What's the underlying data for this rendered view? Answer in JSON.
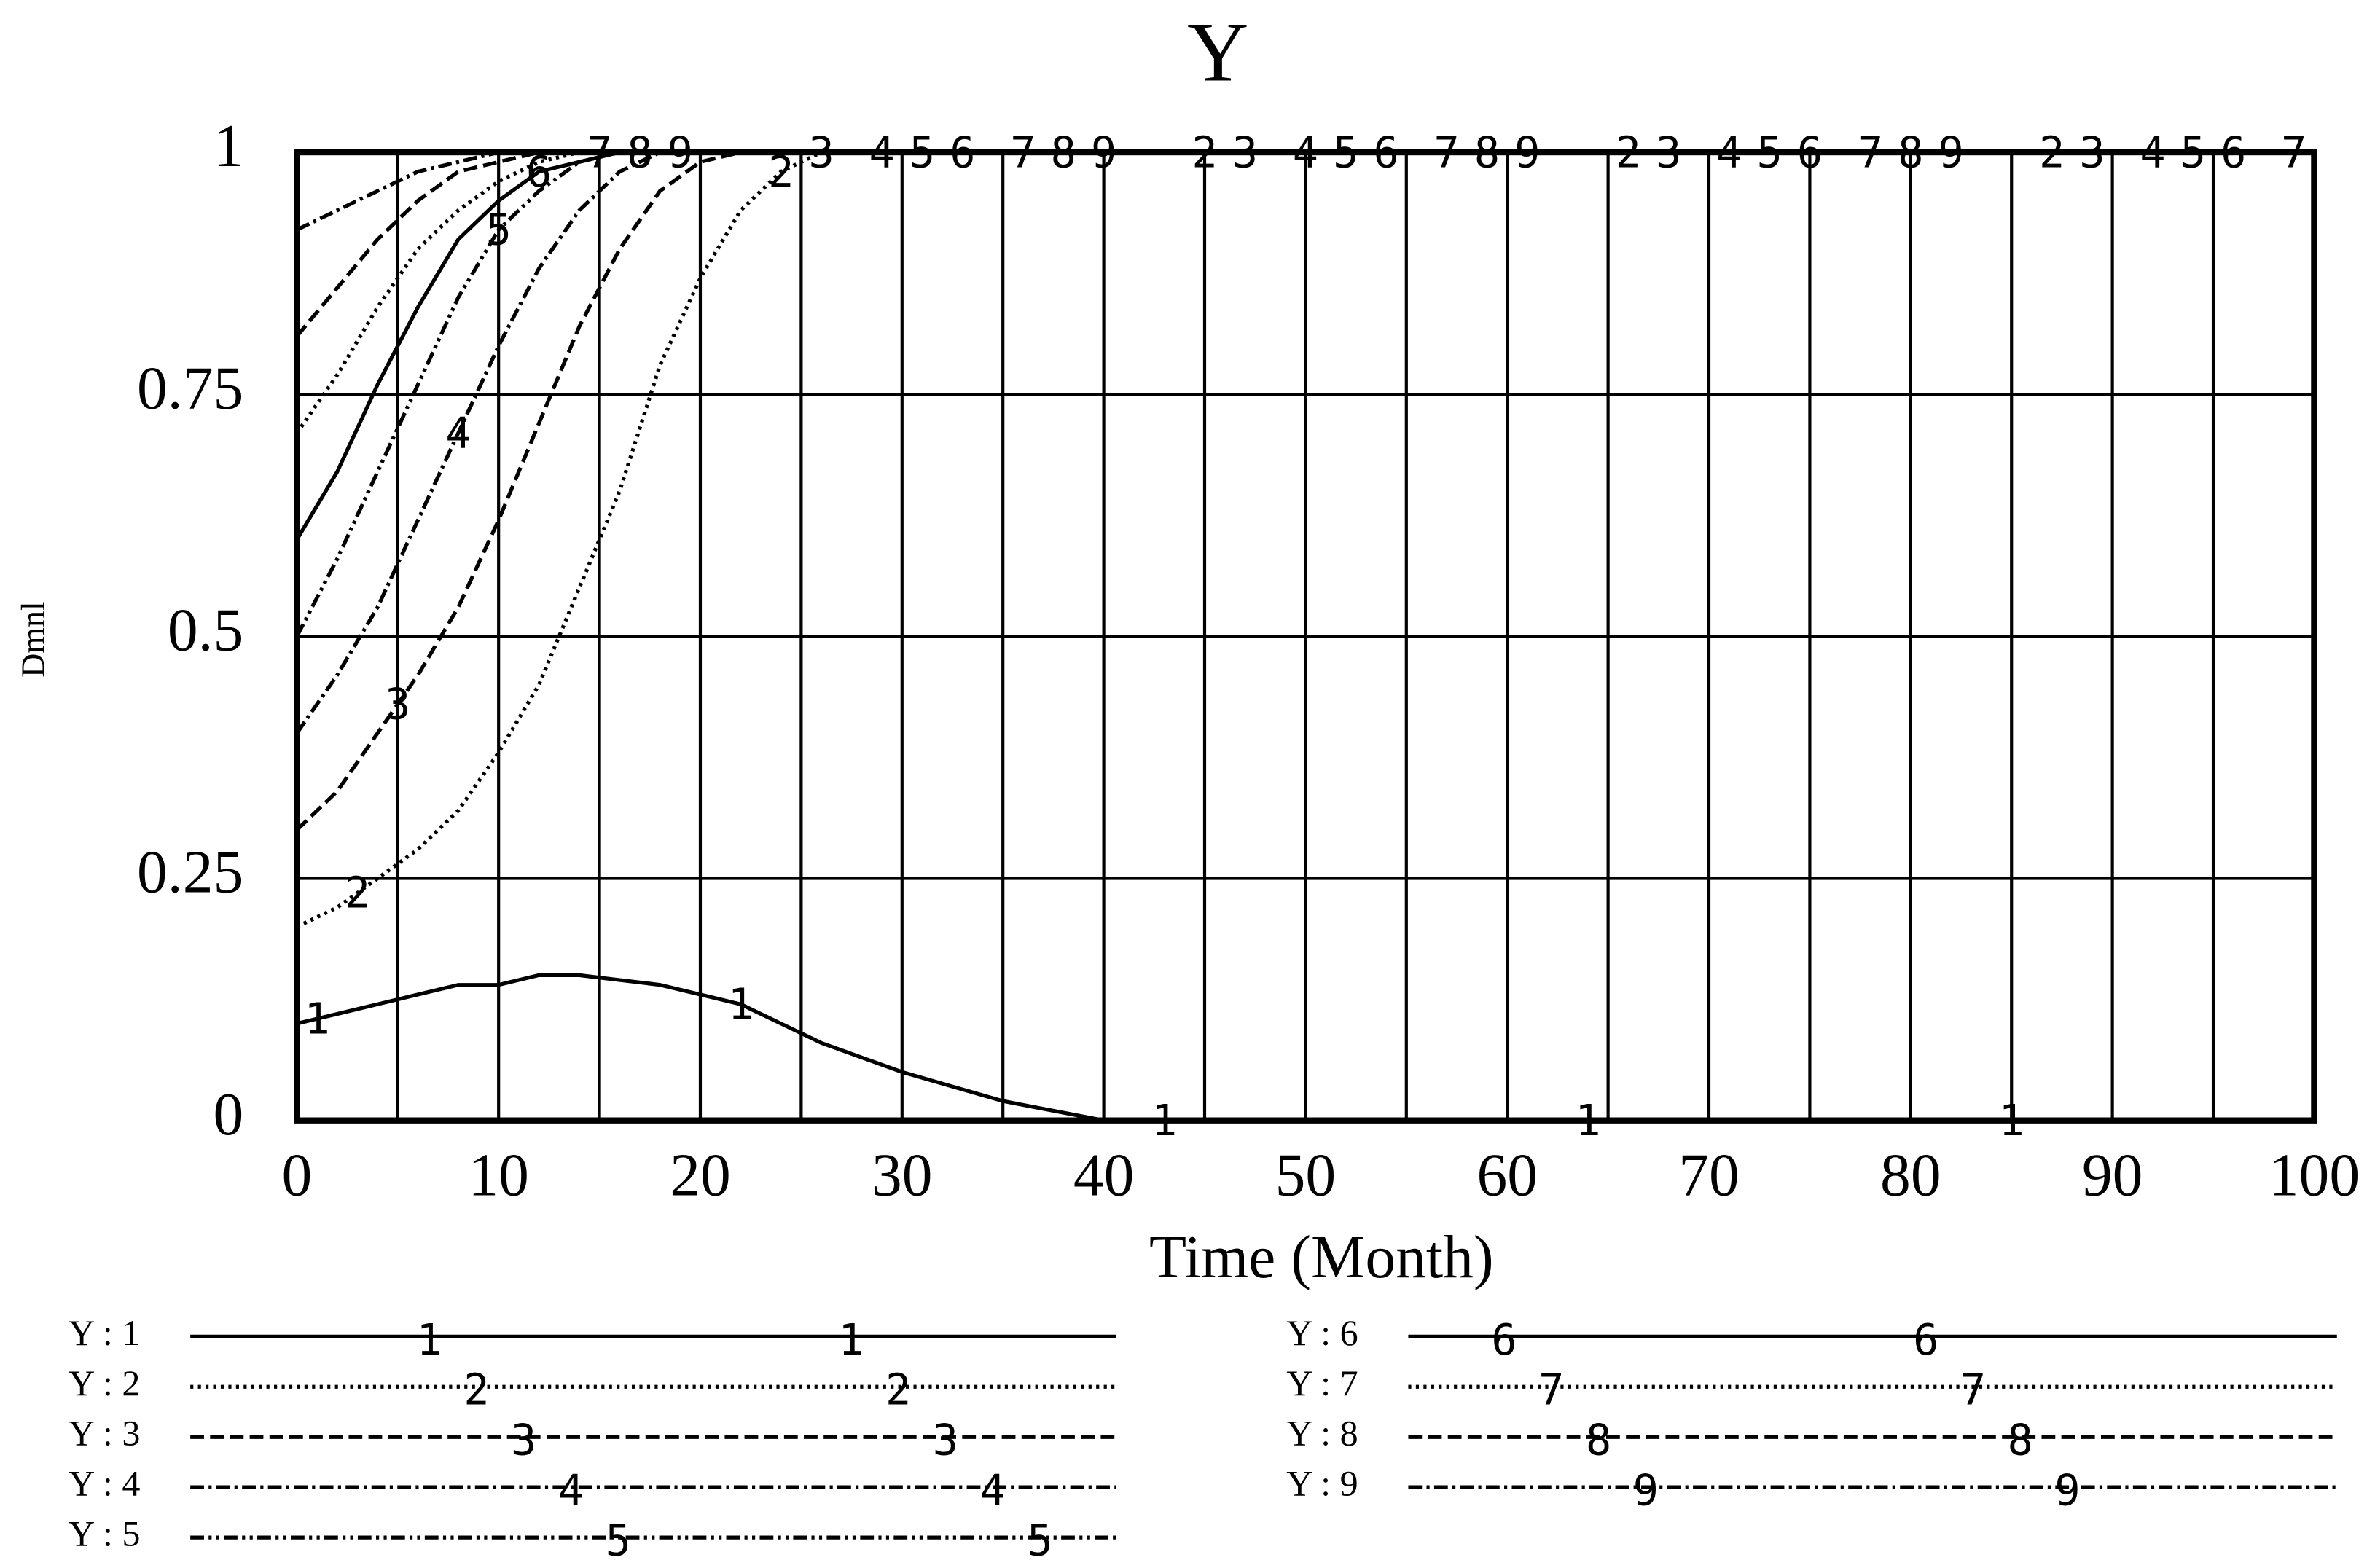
{
  "chart_data": {
    "type": "line",
    "title": "Y",
    "x_label": "Time (Month)",
    "y_label": "Dmnl",
    "x": [
      0,
      2,
      4,
      6,
      8,
      10,
      12,
      14,
      16,
      18,
      20,
      22,
      24,
      26,
      28,
      30,
      35,
      40,
      50,
      60,
      70,
      80,
      90,
      100
    ],
    "xlim": [
      0,
      100
    ],
    "xticks": [
      0,
      10,
      20,
      30,
      40,
      50,
      60,
      70,
      80,
      90,
      100
    ],
    "x_minor_ticks": [
      5,
      15,
      25,
      35,
      45,
      55,
      65,
      75,
      85,
      95
    ],
    "ylim": [
      0,
      1
    ],
    "yticks": [
      0,
      0.25,
      0.5,
      0.75,
      1
    ],
    "grid": true,
    "series": [
      {
        "name": "Y : 1",
        "marker": "1",
        "color": "#000000",
        "line_style": "solid",
        "values": [
          0.1,
          0.11,
          0.12,
          0.13,
          0.14,
          0.14,
          0.15,
          0.15,
          0.145,
          0.14,
          0.13,
          0.12,
          0.1,
          0.08,
          0.065,
          0.05,
          0.02,
          0,
          0,
          0,
          0,
          0,
          0,
          0
        ]
      },
      {
        "name": "Y : 2",
        "marker": "2",
        "color": "#000000",
        "line_style": "dotted",
        "values": [
          0.2,
          0.22,
          0.25,
          0.28,
          0.32,
          0.38,
          0.45,
          0.55,
          0.65,
          0.78,
          0.87,
          0.94,
          0.98,
          1,
          1,
          1,
          1,
          1,
          1,
          1,
          1,
          1,
          1,
          1
        ]
      },
      {
        "name": "Y : 3",
        "marker": "3",
        "color": "#000000",
        "line_style": "dashed",
        "values": [
          0.3,
          0.34,
          0.4,
          0.46,
          0.53,
          0.62,
          0.72,
          0.82,
          0.9,
          0.96,
          0.99,
          1,
          1,
          1,
          1,
          1,
          1,
          1,
          1,
          1,
          1,
          1,
          1,
          1
        ]
      },
      {
        "name": "Y : 4",
        "marker": "4",
        "color": "#000000",
        "line_style": "dashdot",
        "values": [
          0.4,
          0.46,
          0.53,
          0.62,
          0.71,
          0.8,
          0.88,
          0.94,
          0.98,
          1,
          1,
          1,
          1,
          1,
          1,
          1,
          1,
          1,
          1,
          1,
          1,
          1,
          1,
          1
        ]
      },
      {
        "name": "Y : 5",
        "marker": "5",
        "color": "#000000",
        "line_style": "dashdotdot",
        "values": [
          0.5,
          0.58,
          0.67,
          0.76,
          0.85,
          0.92,
          0.96,
          0.99,
          1,
          1,
          1,
          1,
          1,
          1,
          1,
          1,
          1,
          1,
          1,
          1,
          1,
          1,
          1,
          1
        ]
      },
      {
        "name": "Y : 6",
        "marker": "6",
        "color": "#000000",
        "line_style": "solid",
        "values": [
          0.6,
          0.67,
          0.76,
          0.84,
          0.91,
          0.95,
          0.98,
          0.99,
          1,
          1,
          1,
          1,
          1,
          1,
          1,
          1,
          1,
          1,
          1,
          1,
          1,
          1,
          1,
          1
        ]
      },
      {
        "name": "Y : 7",
        "marker": "7",
        "color": "#000000",
        "line_style": "dotted",
        "values": [
          0.71,
          0.77,
          0.84,
          0.9,
          0.94,
          0.97,
          0.99,
          1,
          1,
          1,
          1,
          1,
          1,
          1,
          1,
          1,
          1,
          1,
          1,
          1,
          1,
          1,
          1,
          1
        ]
      },
      {
        "name": "Y : 8",
        "marker": "8",
        "color": "#000000",
        "line_style": "dashed",
        "values": [
          0.81,
          0.86,
          0.91,
          0.95,
          0.98,
          0.99,
          1,
          1,
          1,
          1,
          1,
          1,
          1,
          1,
          1,
          1,
          1,
          1,
          1,
          1,
          1,
          1,
          1,
          1
        ]
      },
      {
        "name": "Y : 9",
        "marker": "9",
        "color": "#000000",
        "line_style": "dashdot",
        "values": [
          0.92,
          0.94,
          0.96,
          0.98,
          0.99,
          1,
          1,
          1,
          1,
          1,
          1,
          1,
          1,
          1,
          1,
          1,
          1,
          1,
          1,
          1,
          1,
          1,
          1,
          1
        ]
      }
    ]
  }
}
